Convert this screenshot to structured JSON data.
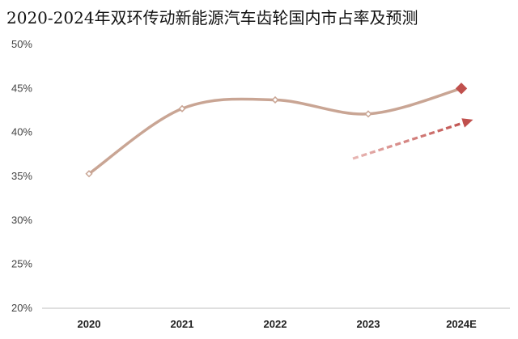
{
  "chart_data": {
    "type": "line",
    "title": "2020-2024年双环传动新能源汽车齿轮国内市占率及预测",
    "categories": [
      "2020",
      "2021",
      "2022",
      "2023",
      "2024E"
    ],
    "series": [
      {
        "values": [
          35.3,
          42.7,
          43.7,
          42.1,
          45.0
        ],
        "projected_index": 4
      }
    ],
    "ylim": [
      20,
      50
    ],
    "yticks": [
      "20%",
      "25%",
      "30%",
      "35%",
      "40%",
      "45%",
      "50%"
    ],
    "ytick_values": [
      20,
      25,
      30,
      35,
      40,
      45,
      50
    ],
    "trend_arrow": {
      "from_category": "2023",
      "to_category": "2024E",
      "style": "dashed"
    },
    "grid": false,
    "colors": {
      "line": "#c9a594",
      "marker_fill": "#ffffff",
      "projected_marker": "#c0504d",
      "arrow": "#c0504d",
      "axis": "#bfbfbf"
    }
  }
}
